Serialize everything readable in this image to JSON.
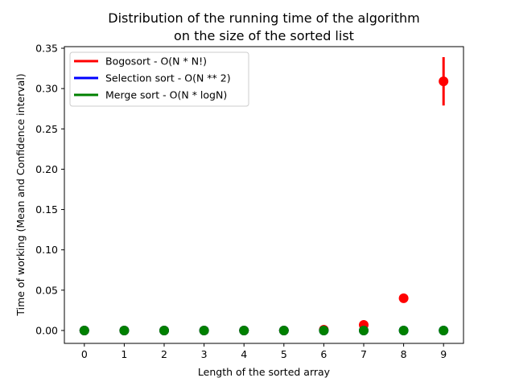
{
  "chart_data": {
    "type": "scatter",
    "title": [
      "Distribution of the running time of the algorithm",
      "on the size of the sorted list"
    ],
    "xlabel": "Length of the sorted array",
    "ylabel": "Time of working (Mean and Confidence interval)",
    "x": [
      0,
      1,
      2,
      3,
      4,
      5,
      6,
      7,
      8,
      9
    ],
    "xlim": [
      -0.5,
      9.5
    ],
    "ylim": [
      -0.016,
      0.352
    ],
    "yticks": [
      0.0,
      0.05,
      0.1,
      0.15,
      0.2,
      0.25,
      0.3,
      0.35
    ],
    "ytick_labels": [
      "0.00",
      "0.05",
      "0.10",
      "0.15",
      "0.20",
      "0.25",
      "0.30",
      "0.35"
    ],
    "xtick_labels": [
      "0",
      "1",
      "2",
      "3",
      "4",
      "5",
      "6",
      "7",
      "8",
      "9"
    ],
    "grid": false,
    "legend_position": "top-left",
    "series": [
      {
        "name": "Bogosort - O(N * N!)",
        "color": "#ff0000",
        "values": [
          0.0,
          0.0,
          0.0,
          0.0,
          0.0,
          0.0,
          0.001,
          0.007,
          0.04,
          0.309
        ],
        "ci_low": [
          0.0,
          0.0,
          0.0,
          0.0,
          0.0,
          0.0,
          0.0,
          0.006,
          0.038,
          0.279
        ],
        "ci_high": [
          0.0,
          0.0,
          0.0,
          0.0,
          0.0,
          0.0,
          0.001,
          0.008,
          0.042,
          0.339
        ]
      },
      {
        "name": "Selection sort - O(N ** 2)",
        "color": "#0000ff",
        "values": [
          0.0,
          0.0,
          0.0,
          0.0,
          0.0,
          0.0,
          0.0,
          0.0,
          0.0,
          0.0
        ],
        "ci_low": [
          0.0,
          0.0,
          0.0,
          0.0,
          0.0,
          0.0,
          0.0,
          0.0,
          0.0,
          0.0
        ],
        "ci_high": [
          0.0,
          0.0,
          0.0,
          0.0,
          0.0,
          0.0,
          0.0,
          0.0,
          0.0,
          0.0
        ]
      },
      {
        "name": "Merge sort - O(N * logN)",
        "color": "#008000",
        "values": [
          0.0,
          0.0,
          0.0,
          0.0,
          0.0,
          0.0,
          0.0,
          0.0,
          0.0,
          0.0
        ],
        "ci_low": [
          0.0,
          0.0,
          0.0,
          0.0,
          0.0,
          0.0,
          0.0,
          0.0,
          0.0,
          0.0
        ],
        "ci_high": [
          0.0,
          0.0,
          0.0,
          0.0,
          0.0,
          0.0,
          0.0,
          0.0,
          0.0,
          0.0
        ]
      }
    ]
  }
}
